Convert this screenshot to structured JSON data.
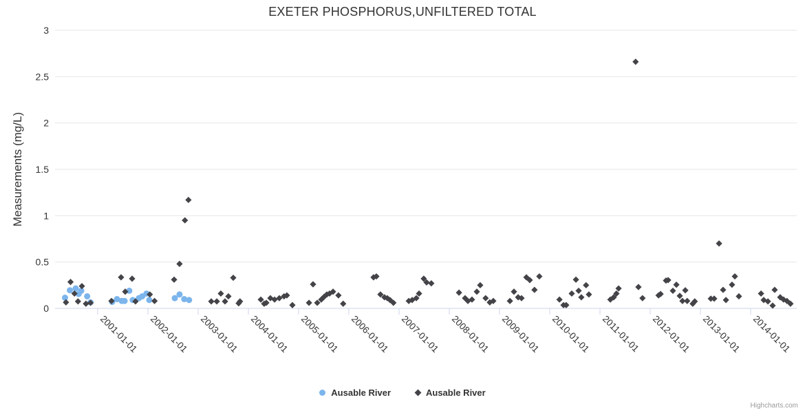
{
  "credit": "Highcharts.com",
  "chart_data": {
    "type": "scatter",
    "title": "EXETER PHOSPHORUS,UNFILTERED TOTAL",
    "xlabel": "",
    "ylabel": "Measurements (mg/L)",
    "ylim": [
      0,
      3
    ],
    "y_ticks": [
      0,
      0.5,
      1,
      1.5,
      2,
      2.5,
      3
    ],
    "x_tick_labels": [
      "2001-01-01",
      "2002-01-01",
      "2003-01-01",
      "2004-01-01",
      "2005-01-01",
      "2006-01-01",
      "2007-01-01",
      "2008-01-01",
      "2009-01-01",
      "2010-01-01",
      "2011-01-01",
      "2012-01-01",
      "2013-01-01",
      "2014-01-01"
    ],
    "grid": true,
    "legend_position": "bottom",
    "colors": {
      "grid_line": "#e6e6e6",
      "axis_line": "#ccd6eb",
      "tick_mark": "#ccd6eb",
      "axis_label": "#333333",
      "title_text": "#333333",
      "legend_text": "#333333",
      "credit_text": "#999999",
      "series_blue": "#7cb5ec",
      "series_dark": "#434348"
    },
    "series": [
      {
        "name": "Ausable River",
        "marker": "circle",
        "color": "#7cb5ec",
        "points": [
          [
            "2000-05-07",
            0.115
          ],
          [
            "2000-06-12",
            0.195
          ],
          [
            "2000-07-24",
            0.215
          ],
          [
            "2000-08-15",
            0.155
          ],
          [
            "2000-09-03",
            0.19
          ],
          [
            "2000-10-16",
            0.13
          ],
          [
            "2000-11-10",
            0.065
          ],
          [
            "2001-04-15",
            0.07
          ],
          [
            "2001-05-20",
            0.1
          ],
          [
            "2001-06-24",
            0.08
          ],
          [
            "2001-07-14",
            0.08
          ],
          [
            "2001-08-18",
            0.19
          ],
          [
            "2001-09-12",
            0.09
          ],
          [
            "2001-10-27",
            0.11
          ],
          [
            "2001-11-21",
            0.13
          ],
          [
            "2001-12-21",
            0.16
          ],
          [
            "2002-01-11",
            0.09
          ],
          [
            "2002-07-14",
            0.11
          ],
          [
            "2002-08-18",
            0.15
          ],
          [
            "2002-09-22",
            0.1
          ],
          [
            "2002-10-27",
            0.09
          ]
        ]
      },
      {
        "name": "Ausable River",
        "marker": "diamond",
        "color": "#434348",
        "points": [
          [
            "2000-05-14",
            0.065
          ],
          [
            "2000-06-17",
            0.285
          ],
          [
            "2000-07-15",
            0.16
          ],
          [
            "2000-08-10",
            0.075
          ],
          [
            "2000-09-08",
            0.24
          ],
          [
            "2000-10-07",
            0.05
          ],
          [
            "2000-11-10",
            0.06
          ],
          [
            "2001-04-10",
            0.08
          ],
          [
            "2001-06-19",
            0.335
          ],
          [
            "2001-07-19",
            0.18
          ],
          [
            "2001-09-08",
            0.32
          ],
          [
            "2001-10-02",
            0.075
          ],
          [
            "2002-01-15",
            0.15
          ],
          [
            "2002-02-19",
            0.08
          ],
          [
            "2002-07-09",
            0.31
          ],
          [
            "2002-08-18",
            0.48
          ],
          [
            "2002-09-27",
            0.95
          ],
          [
            "2002-10-22",
            1.17
          ],
          [
            "2003-04-05",
            0.075
          ],
          [
            "2003-05-15",
            0.075
          ],
          [
            "2003-06-14",
            0.16
          ],
          [
            "2003-07-14",
            0.075
          ],
          [
            "2003-08-08",
            0.13
          ],
          [
            "2003-09-13",
            0.33
          ],
          [
            "2003-10-22",
            0.055
          ],
          [
            "2003-11-01",
            0.075
          ],
          [
            "2004-03-31",
            0.095
          ],
          [
            "2004-04-25",
            0.05
          ],
          [
            "2004-05-10",
            0.06
          ],
          [
            "2004-06-09",
            0.11
          ],
          [
            "2004-07-09",
            0.095
          ],
          [
            "2004-08-13",
            0.11
          ],
          [
            "2004-09-17",
            0.13
          ],
          [
            "2004-10-07",
            0.14
          ],
          [
            "2004-11-17",
            0.035
          ],
          [
            "2005-03-16",
            0.06
          ],
          [
            "2005-04-15",
            0.26
          ],
          [
            "2005-05-15",
            0.06
          ],
          [
            "2005-06-14",
            0.095
          ],
          [
            "2005-07-04",
            0.125
          ],
          [
            "2005-07-24",
            0.15
          ],
          [
            "2005-08-13",
            0.16
          ],
          [
            "2005-09-08",
            0.18
          ],
          [
            "2005-10-17",
            0.14
          ],
          [
            "2005-11-21",
            0.05
          ],
          [
            "2006-06-29",
            0.335
          ],
          [
            "2006-07-19",
            0.345
          ],
          [
            "2006-08-18",
            0.15
          ],
          [
            "2006-09-17",
            0.12
          ],
          [
            "2006-10-07",
            0.11
          ],
          [
            "2006-10-27",
            0.09
          ],
          [
            "2006-11-21",
            0.06
          ],
          [
            "2007-03-11",
            0.08
          ],
          [
            "2007-04-05",
            0.09
          ],
          [
            "2007-05-05",
            0.11
          ],
          [
            "2007-05-25",
            0.16
          ],
          [
            "2007-06-29",
            0.32
          ],
          [
            "2007-07-19",
            0.28
          ],
          [
            "2007-08-23",
            0.27
          ],
          [
            "2008-03-11",
            0.17
          ],
          [
            "2008-04-25",
            0.11
          ],
          [
            "2008-05-15",
            0.08
          ],
          [
            "2008-06-14",
            0.095
          ],
          [
            "2008-07-19",
            0.18
          ],
          [
            "2008-08-13",
            0.25
          ],
          [
            "2008-09-22",
            0.11
          ],
          [
            "2008-10-22",
            0.065
          ],
          [
            "2008-11-17",
            0.08
          ],
          [
            "2009-03-16",
            0.08
          ],
          [
            "2009-04-15",
            0.18
          ],
          [
            "2009-05-15",
            0.12
          ],
          [
            "2009-06-09",
            0.11
          ],
          [
            "2009-07-14",
            0.335
          ],
          [
            "2009-08-08",
            0.305
          ],
          [
            "2009-09-12",
            0.2
          ],
          [
            "2009-10-17",
            0.345
          ],
          [
            "2010-03-11",
            0.095
          ],
          [
            "2010-04-10",
            0.035
          ],
          [
            "2010-04-30",
            0.035
          ],
          [
            "2010-06-09",
            0.16
          ],
          [
            "2010-07-09",
            0.31
          ],
          [
            "2010-07-29",
            0.19
          ],
          [
            "2010-08-18",
            0.12
          ],
          [
            "2010-09-22",
            0.25
          ],
          [
            "2010-10-12",
            0.15
          ],
          [
            "2011-03-16",
            0.095
          ],
          [
            "2011-04-10",
            0.12
          ],
          [
            "2011-04-30",
            0.16
          ],
          [
            "2011-05-15",
            0.215
          ],
          [
            "2011-09-17",
            2.66
          ],
          [
            "2011-10-07",
            0.23
          ],
          [
            "2011-11-06",
            0.11
          ],
          [
            "2012-03-01",
            0.14
          ],
          [
            "2012-03-16",
            0.155
          ],
          [
            "2012-04-25",
            0.3
          ],
          [
            "2012-05-10",
            0.305
          ],
          [
            "2012-06-14",
            0.19
          ],
          [
            "2012-07-09",
            0.255
          ],
          [
            "2012-08-03",
            0.135
          ],
          [
            "2012-08-23",
            0.08
          ],
          [
            "2012-09-13",
            0.195
          ],
          [
            "2012-09-27",
            0.08
          ],
          [
            "2012-11-06",
            0.05
          ],
          [
            "2012-11-21",
            0.075
          ],
          [
            "2013-03-16",
            0.105
          ],
          [
            "2013-04-10",
            0.105
          ],
          [
            "2013-05-15",
            0.7
          ],
          [
            "2013-06-14",
            0.2
          ],
          [
            "2013-07-04",
            0.09
          ],
          [
            "2013-08-18",
            0.255
          ],
          [
            "2013-09-08",
            0.345
          ],
          [
            "2013-10-07",
            0.13
          ],
          [
            "2014-03-16",
            0.16
          ],
          [
            "2014-04-05",
            0.09
          ],
          [
            "2014-05-05",
            0.075
          ],
          [
            "2014-06-09",
            0.03
          ],
          [
            "2014-06-24",
            0.2
          ],
          [
            "2014-08-03",
            0.12
          ],
          [
            "2014-08-28",
            0.095
          ],
          [
            "2014-09-22",
            0.08
          ],
          [
            "2014-10-17",
            0.05
          ]
        ]
      }
    ]
  }
}
